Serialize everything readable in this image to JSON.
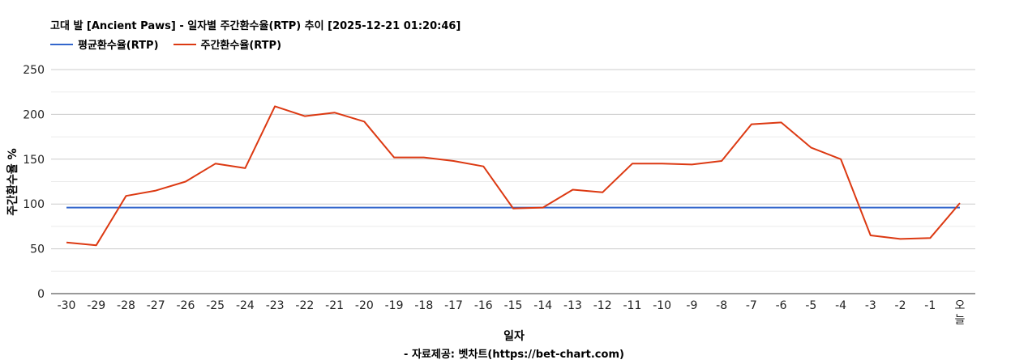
{
  "chart_data": {
    "type": "line",
    "title": "고대 발 [Ancient Paws] - 일자별 주간환수율(RTP) 추이 [2025-12-21 01:20:46]",
    "xlabel": "일자",
    "ylabel": "주간환수율 %",
    "ylim": [
      0,
      250
    ],
    "yticks": [
      0,
      50,
      100,
      150,
      200,
      250
    ],
    "grid": true,
    "legend_position": "top-left",
    "categories": [
      "-30",
      "-29",
      "-28",
      "-27",
      "-26",
      "-25",
      "-24",
      "-23",
      "-22",
      "-21",
      "-20",
      "-19",
      "-18",
      "-17",
      "-16",
      "-15",
      "-14",
      "-13",
      "-12",
      "-11",
      "-10",
      "-9",
      "-8",
      "-7",
      "-6",
      "-5",
      "-4",
      "-3",
      "-2",
      "-1",
      "오늘"
    ],
    "series": [
      {
        "name": "평균환수율(RTP)",
        "color": "#3366cc",
        "values": [
          96,
          96,
          96,
          96,
          96,
          96,
          96,
          96,
          96,
          96,
          96,
          96,
          96,
          96,
          96,
          96,
          96,
          96,
          96,
          96,
          96,
          96,
          96,
          96,
          96,
          96,
          96,
          96,
          96,
          96,
          96
        ]
      },
      {
        "name": "주간환수율(RTP)",
        "color": "#dc3912",
        "values": [
          57,
          54,
          109,
          115,
          125,
          145,
          140,
          209,
          198,
          202,
          192,
          152,
          152,
          148,
          142,
          95,
          96,
          116,
          113,
          145,
          145,
          144,
          148,
          189,
          191,
          163,
          150,
          65,
          61,
          62,
          101
        ]
      }
    ]
  },
  "footer": {
    "source": "- 자료제공: 벳차트(https://bet-chart.com)"
  }
}
